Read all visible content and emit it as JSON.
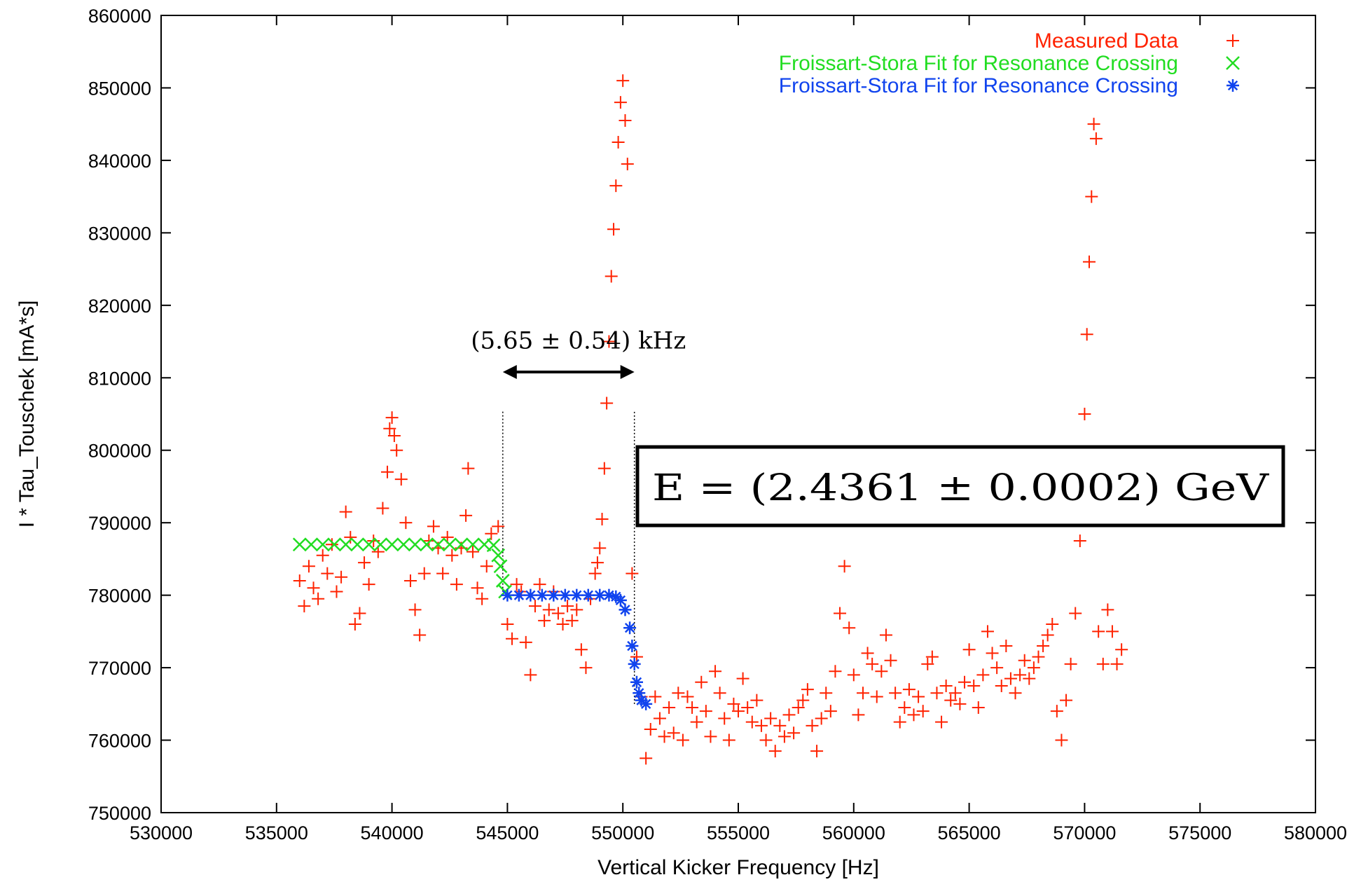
{
  "chart_data": {
    "type": "scatter",
    "xlabel": "Vertical Kicker Frequency [Hz]",
    "ylabel": "I * Tau_Touschek [mA*s]",
    "xlim": [
      530000,
      580000
    ],
    "ylim": [
      750000,
      860000
    ],
    "xticks": [
      "530000",
      "535000",
      "540000",
      "545000",
      "550000",
      "555000",
      "560000",
      "565000",
      "570000",
      "575000",
      "580000"
    ],
    "yticks": [
      "750000",
      "760000",
      "770000",
      "780000",
      "790000",
      "800000",
      "810000",
      "820000",
      "830000",
      "840000",
      "850000",
      "860000"
    ],
    "legend_position": "top-right",
    "series": [
      {
        "name": "Measured Data",
        "marker": "+",
        "color": "#ff2200",
        "points": [
          [
            536000,
            782000
          ],
          [
            536200,
            778500
          ],
          [
            536400,
            784000
          ],
          [
            536600,
            781000
          ],
          [
            536800,
            779500
          ],
          [
            537000,
            785500
          ],
          [
            537200,
            783000
          ],
          [
            537400,
            787000
          ],
          [
            537600,
            780500
          ],
          [
            537800,
            782500
          ],
          [
            538000,
            791500
          ],
          [
            538200,
            788000
          ],
          [
            538400,
            776000
          ],
          [
            538600,
            777500
          ],
          [
            538800,
            784500
          ],
          [
            539000,
            781500
          ],
          [
            539200,
            787500
          ],
          [
            539400,
            786000
          ],
          [
            539600,
            792000
          ],
          [
            539800,
            797000
          ],
          [
            539900,
            803000
          ],
          [
            540000,
            804500
          ],
          [
            540100,
            802000
          ],
          [
            540200,
            800000
          ],
          [
            540400,
            796000
          ],
          [
            540600,
            790000
          ],
          [
            540800,
            782000
          ],
          [
            541000,
            778000
          ],
          [
            541200,
            774500
          ],
          [
            541400,
            783000
          ],
          [
            541600,
            787500
          ],
          [
            541800,
            789500
          ],
          [
            542000,
            786500
          ],
          [
            542200,
            783000
          ],
          [
            542400,
            788000
          ],
          [
            542600,
            785500
          ],
          [
            542800,
            781500
          ],
          [
            543000,
            786500
          ],
          [
            543200,
            791000
          ],
          [
            543300,
            797500
          ],
          [
            543500,
            786000
          ],
          [
            543700,
            781000
          ],
          [
            543900,
            779500
          ],
          [
            544100,
            784000
          ],
          [
            544300,
            788500
          ],
          [
            544600,
            789500
          ],
          [
            545000,
            776000
          ],
          [
            545200,
            774000
          ],
          [
            545400,
            781500
          ],
          [
            545600,
            780500
          ],
          [
            545800,
            773500
          ],
          [
            546000,
            769000
          ],
          [
            546200,
            778500
          ],
          [
            546400,
            781500
          ],
          [
            546600,
            776500
          ],
          [
            546800,
            778000
          ],
          [
            547000,
            780500
          ],
          [
            547200,
            777500
          ],
          [
            547400,
            776000
          ],
          [
            547600,
            778500
          ],
          [
            547800,
            776500
          ],
          [
            548000,
            778000
          ],
          [
            548200,
            772500
          ],
          [
            548400,
            770000
          ],
          [
            548600,
            779500
          ],
          [
            548800,
            783000
          ],
          [
            548900,
            784500
          ],
          [
            549000,
            786500
          ],
          [
            549100,
            790500
          ],
          [
            549200,
            797500
          ],
          [
            549300,
            806500
          ],
          [
            549400,
            815000
          ],
          [
            549500,
            824000
          ],
          [
            549600,
            830500
          ],
          [
            549700,
            836500
          ],
          [
            549800,
            842500
          ],
          [
            549900,
            848000
          ],
          [
            550000,
            851000
          ],
          [
            550100,
            845500
          ],
          [
            550200,
            839500
          ],
          [
            550400,
            783000
          ],
          [
            550600,
            771500
          ],
          [
            550800,
            766000
          ],
          [
            551000,
            757500
          ],
          [
            551200,
            761500
          ],
          [
            551400,
            766000
          ],
          [
            551600,
            763000
          ],
          [
            551800,
            760500
          ],
          [
            552000,
            764500
          ],
          [
            552200,
            761000
          ],
          [
            552400,
            766500
          ],
          [
            552600,
            760000
          ],
          [
            552800,
            766000
          ],
          [
            553000,
            764500
          ],
          [
            553200,
            762500
          ],
          [
            553400,
            768000
          ],
          [
            553600,
            764000
          ],
          [
            553800,
            760500
          ],
          [
            554000,
            769500
          ],
          [
            554200,
            766500
          ],
          [
            554400,
            763000
          ],
          [
            554600,
            760000
          ],
          [
            554800,
            765000
          ],
          [
            555000,
            764000
          ],
          [
            555200,
            768500
          ],
          [
            555400,
            764500
          ],
          [
            555600,
            762500
          ],
          [
            555800,
            765500
          ],
          [
            556000,
            762000
          ],
          [
            556200,
            760000
          ],
          [
            556400,
            763000
          ],
          [
            556600,
            758500
          ],
          [
            556800,
            762000
          ],
          [
            557000,
            760500
          ],
          [
            557200,
            763500
          ],
          [
            557400,
            761000
          ],
          [
            557600,
            764500
          ],
          [
            557800,
            765500
          ],
          [
            558000,
            767000
          ],
          [
            558200,
            762000
          ],
          [
            558400,
            758500
          ],
          [
            558600,
            763000
          ],
          [
            558800,
            766500
          ],
          [
            559000,
            764000
          ],
          [
            559200,
            769500
          ],
          [
            559400,
            777500
          ],
          [
            559600,
            784000
          ],
          [
            559800,
            775500
          ],
          [
            560000,
            769000
          ],
          [
            560200,
            763500
          ],
          [
            560400,
            766500
          ],
          [
            560600,
            772000
          ],
          [
            560800,
            770500
          ],
          [
            561000,
            766000
          ],
          [
            561200,
            769500
          ],
          [
            561400,
            774500
          ],
          [
            561600,
            771000
          ],
          [
            561800,
            766500
          ],
          [
            562000,
            762500
          ],
          [
            562200,
            764500
          ],
          [
            562400,
            767000
          ],
          [
            562600,
            763500
          ],
          [
            562800,
            766000
          ],
          [
            563000,
            764000
          ],
          [
            563200,
            770500
          ],
          [
            563400,
            771500
          ],
          [
            563600,
            766500
          ],
          [
            563800,
            762500
          ],
          [
            564000,
            767500
          ],
          [
            564200,
            765500
          ],
          [
            564400,
            766500
          ],
          [
            564600,
            765000
          ],
          [
            564800,
            768000
          ],
          [
            565000,
            772500
          ],
          [
            565200,
            767500
          ],
          [
            565400,
            764500
          ],
          [
            565600,
            769000
          ],
          [
            565800,
            775000
          ],
          [
            566000,
            772000
          ],
          [
            566200,
            770000
          ],
          [
            566400,
            767500
          ],
          [
            566600,
            773000
          ],
          [
            566800,
            768500
          ],
          [
            567000,
            766500
          ],
          [
            567200,
            769000
          ],
          [
            567400,
            771000
          ],
          [
            567600,
            768500
          ],
          [
            567800,
            770000
          ],
          [
            568000,
            771500
          ],
          [
            568200,
            773000
          ],
          [
            568400,
            774500
          ],
          [
            568600,
            776000
          ],
          [
            568800,
            764000
          ],
          [
            569000,
            760000
          ],
          [
            569200,
            765500
          ],
          [
            569400,
            770500
          ],
          [
            569600,
            777500
          ],
          [
            569800,
            787500
          ],
          [
            569900,
            795000
          ],
          [
            570000,
            805000
          ],
          [
            570100,
            816000
          ],
          [
            570200,
            826000
          ],
          [
            570300,
            835000
          ],
          [
            570400,
            845000
          ],
          [
            570500,
            843000
          ],
          [
            570600,
            775000
          ],
          [
            570800,
            770500
          ],
          [
            571000,
            778000
          ],
          [
            571200,
            775000
          ],
          [
            571400,
            770500
          ],
          [
            571600,
            772500
          ]
        ]
      },
      {
        "name": "Froissart-Stora Fit for Resonance Crossing",
        "marker": "x",
        "color": "#22dd22",
        "points": [
          [
            536000,
            787000
          ],
          [
            536500,
            787000
          ],
          [
            537000,
            787000
          ],
          [
            537500,
            787000
          ],
          [
            538000,
            787000
          ],
          [
            538500,
            787000
          ],
          [
            539000,
            787000
          ],
          [
            539500,
            787000
          ],
          [
            540000,
            787000
          ],
          [
            540500,
            787000
          ],
          [
            541000,
            787000
          ],
          [
            541500,
            787000
          ],
          [
            542000,
            787000
          ],
          [
            542500,
            787000
          ],
          [
            543000,
            787000
          ],
          [
            543500,
            787000
          ],
          [
            544000,
            787000
          ],
          [
            544400,
            786900
          ],
          [
            544600,
            785500
          ],
          [
            544700,
            784000
          ],
          [
            544800,
            782000
          ],
          [
            544900,
            780500
          ]
        ]
      },
      {
        "name": "Froissart-Stora Fit for Resonance Crossing",
        "marker": "*",
        "color": "#1144ee",
        "points": [
          [
            545000,
            780000
          ],
          [
            545500,
            780000
          ],
          [
            546000,
            780000
          ],
          [
            546500,
            780000
          ],
          [
            547000,
            780000
          ],
          [
            547500,
            780000
          ],
          [
            548000,
            780000
          ],
          [
            548500,
            780000
          ],
          [
            549000,
            780000
          ],
          [
            549400,
            780000
          ],
          [
            549700,
            779800
          ],
          [
            549900,
            779300
          ],
          [
            550100,
            778000
          ],
          [
            550300,
            775500
          ],
          [
            550400,
            773000
          ],
          [
            550500,
            770500
          ],
          [
            550600,
            768000
          ],
          [
            550700,
            766500
          ],
          [
            550800,
            765500
          ],
          [
            551000,
            765000
          ]
        ]
      }
    ],
    "annotations": [
      {
        "text": "(5.65 ± 0.54) kHz",
        "arrow_from_x": 544800,
        "arrow_to_x": 550500,
        "arrow_y": 810800,
        "text_y": 815000
      },
      {
        "text": "E = (2.4361 ± 0.0002) GeV",
        "boxed": true
      }
    ],
    "vertical_markers": [
      {
        "x": 544800,
        "y_from": 780000,
        "y_to": 805500
      },
      {
        "x": 550500,
        "y_from": 765000,
        "y_to": 805500
      }
    ]
  }
}
